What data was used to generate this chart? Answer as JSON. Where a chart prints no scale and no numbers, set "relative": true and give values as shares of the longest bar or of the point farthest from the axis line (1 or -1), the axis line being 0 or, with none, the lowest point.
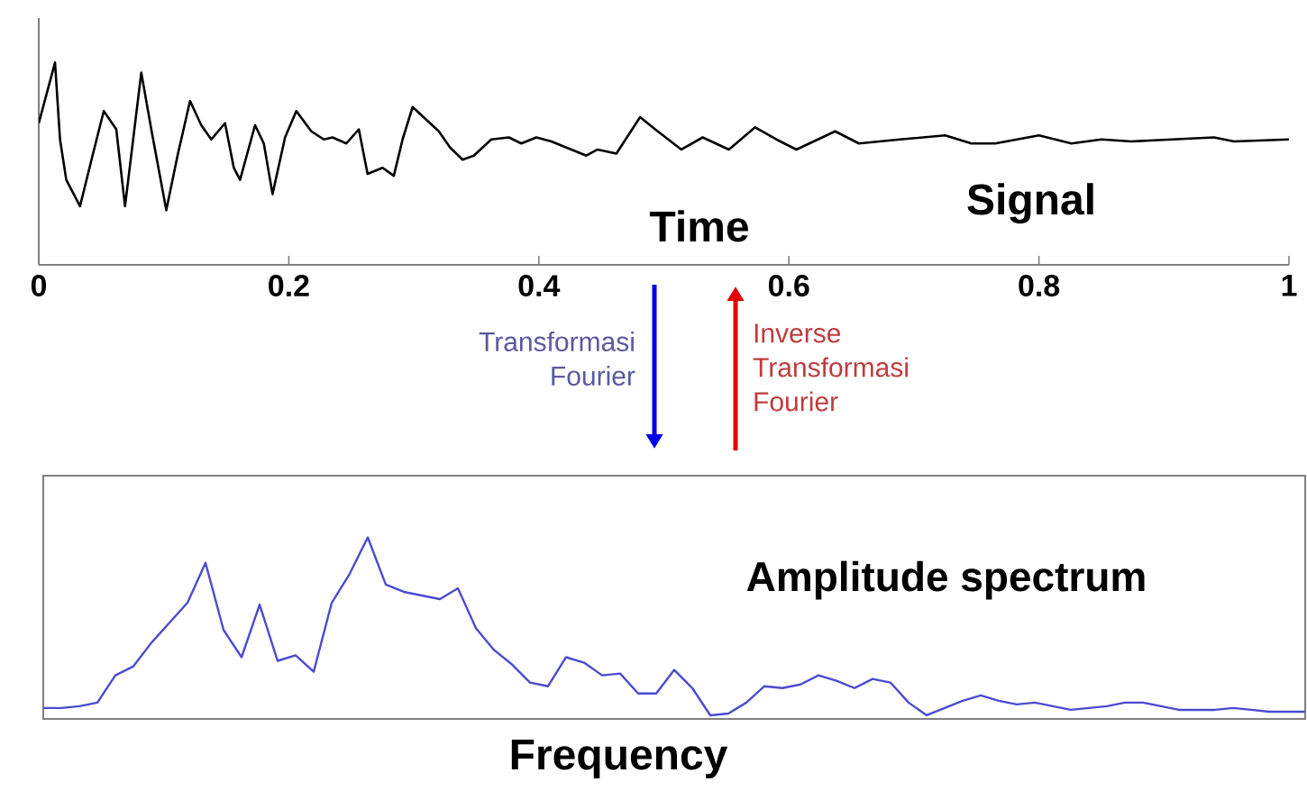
{
  "chart_data": [
    {
      "type": "line",
      "title": "Signal",
      "xlabel": "Time",
      "relative": true,
      "color": "#000000",
      "annotations": [
        "Transformasi Fourier",
        "Inverse Transformasi Fourier"
      ],
      "xlim": [
        0,
        1
      ],
      "xticks": [
        0,
        0.2,
        0.4,
        0.6,
        0.8,
        1
      ],
      "x": [
        0,
        0.013,
        0.017,
        0.022,
        0.033,
        0.043,
        0.052,
        0.062,
        0.069,
        0.082,
        0.09,
        0.102,
        0.111,
        0.121,
        0.13,
        0.138,
        0.149,
        0.156,
        0.161,
        0.173,
        0.18,
        0.187,
        0.197,
        0.206,
        0.218,
        0.228,
        0.235,
        0.246,
        0.256,
        0.263,
        0.275,
        0.284,
        0.291,
        0.299,
        0.32,
        0.329,
        0.339,
        0.348,
        0.362,
        0.376,
        0.386,
        0.398,
        0.41,
        0.422,
        0.438,
        0.447,
        0.462,
        0.481,
        0.493,
        0.514,
        0.531,
        0.552,
        0.573,
        0.59,
        0.606,
        0.637,
        0.656,
        0.689,
        0.725,
        0.746,
        0.765,
        0.8,
        0.826,
        0.85,
        0.874,
        0.94,
        0.956,
        1.0
      ],
      "values": [
        0.7,
        1.0,
        0.62,
        0.42,
        0.29,
        0.54,
        0.76,
        0.67,
        0.29,
        0.95,
        0.67,
        0.27,
        0.54,
        0.81,
        0.69,
        0.62,
        0.7,
        0.48,
        0.42,
        0.69,
        0.6,
        0.35,
        0.63,
        0.76,
        0.66,
        0.62,
        0.63,
        0.6,
        0.67,
        0.45,
        0.48,
        0.44,
        0.62,
        0.78,
        0.66,
        0.58,
        0.52,
        0.54,
        0.62,
        0.63,
        0.6,
        0.63,
        0.61,
        0.58,
        0.54,
        0.57,
        0.55,
        0.73,
        0.67,
        0.57,
        0.63,
        0.57,
        0.68,
        0.62,
        0.57,
        0.66,
        0.6,
        0.62,
        0.64,
        0.6,
        0.6,
        0.64,
        0.6,
        0.62,
        0.61,
        0.63,
        0.61,
        0.62
      ]
    },
    {
      "type": "line",
      "title": "Amplitude spectrum",
      "xlabel": "Frequency",
      "relative": true,
      "color": "#4b4bd0",
      "categories": [
        null,
        null,
        null,
        null,
        null,
        null,
        null,
        null,
        null,
        null,
        null,
        null,
        null,
        null,
        null,
        null,
        null,
        null,
        null,
        null,
        null,
        null,
        null,
        null,
        null,
        null,
        null,
        null,
        null,
        null,
        null,
        null,
        null,
        null,
        null,
        null,
        null,
        null,
        null,
        null,
        null,
        null,
        null,
        null,
        null,
        null,
        null,
        null,
        null,
        null,
        null,
        null,
        null,
        null,
        null,
        null,
        null,
        null,
        null,
        null,
        null,
        null,
        null,
        null,
        null,
        null,
        null,
        null,
        null,
        null,
        null
      ],
      "values": [
        0.06,
        0.06,
        0.07,
        0.09,
        0.24,
        0.29,
        0.42,
        0.53,
        0.64,
        0.86,
        0.49,
        0.34,
        0.63,
        0.32,
        0.35,
        0.26,
        0.64,
        0.8,
        1.0,
        0.74,
        0.7,
        0.68,
        0.66,
        0.72,
        0.5,
        0.38,
        0.3,
        0.2,
        0.18,
        0.34,
        0.31,
        0.24,
        0.25,
        0.14,
        0.14,
        0.27,
        0.17,
        0.02,
        0.03,
        0.09,
        0.18,
        0.17,
        0.19,
        0.24,
        0.21,
        0.17,
        0.22,
        0.2,
        0.09,
        0.02,
        0.06,
        0.1,
        0.13,
        0.1,
        0.08,
        0.09,
        0.07,
        0.05,
        0.06,
        0.07,
        0.09,
        0.09,
        0.07,
        0.05,
        0.05,
        0.05,
        0.06,
        0.05,
        0.04,
        0.04,
        0.04
      ]
    }
  ]
}
